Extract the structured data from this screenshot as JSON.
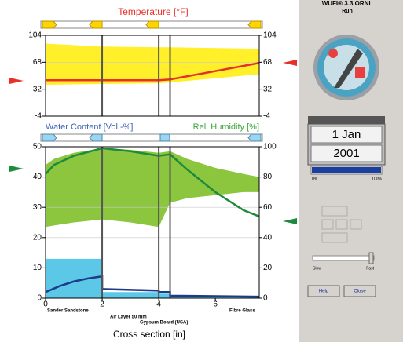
{
  "window": {
    "title": "WUFI® 3.3 ORNL",
    "status": "Run",
    "date": "1 Jan",
    "year": "2001",
    "progress": {
      "value": 100,
      "min_label": "0%",
      "max_label": "100%"
    },
    "speed": {
      "min_label": "Slow",
      "max_label": "Fast"
    },
    "buttons": [
      "Help",
      "Close"
    ]
  },
  "chart_data": [
    {
      "type": "line",
      "title": "Temperature [°F]",
      "xlim": [
        0,
        7.55
      ],
      "ylim": [
        -4,
        104
      ],
      "yticks": [
        -4,
        32,
        68,
        104
      ],
      "grid": true,
      "layer_boundaries": [
        2,
        4,
        4.4
      ],
      "bands": [
        {
          "color": "#fff02a",
          "x": [
            0,
            2,
            4,
            4.4,
            7.55
          ],
          "lower": [
            38,
            39,
            40,
            41,
            52
          ],
          "upper": [
            93,
            89,
            88,
            88,
            86
          ]
        }
      ],
      "series": [
        {
          "color": "#e8302a",
          "x": [
            0,
            2,
            4,
            4.4,
            7.55
          ],
          "values": [
            44,
            44,
            44,
            45,
            67
          ]
        }
      ]
    },
    {
      "type": "line",
      "y_label": "Water Content [Vol.-%]",
      "y2_label": "Rel. Humidity [%]",
      "xlabel": "Cross section [in]",
      "xlim": [
        0,
        7.55
      ],
      "xticks": [
        0,
        2,
        4,
        6
      ],
      "ylim": [
        0,
        50
      ],
      "yticks": [
        0,
        10,
        20,
        30,
        40,
        50
      ],
      "y2lim": [
        0,
        100
      ],
      "y2ticks": [
        0,
        20,
        40,
        60,
        80,
        100
      ],
      "grid": true,
      "layer_boundaries": [
        2,
        4,
        4.4
      ],
      "layer_labels": [
        "Sander Sandstone",
        "Air Layer 50 mm",
        "Gypsum Board (USA)",
        "Fibre Glass"
      ],
      "bands": [
        {
          "color": "#8cc63f",
          "axis": "y2",
          "x": [
            0,
            0.3,
            1,
            2,
            3,
            4,
            4.4,
            5,
            6,
            7,
            7.55
          ],
          "lower": [
            47,
            48,
            50,
            52,
            50,
            47,
            63,
            66,
            68,
            70,
            70
          ],
          "upper": [
            88,
            92,
            96,
            99,
            98,
            96,
            97,
            92,
            86,
            82,
            80
          ]
        },
        {
          "color": "#5bc8e8",
          "x": [
            0,
            2,
            2,
            4,
            4,
            4.4,
            4.4,
            7.55
          ],
          "lower": [
            0,
            0,
            0,
            0,
            0,
            0,
            0,
            0
          ],
          "upper": [
            13,
            13,
            2,
            2,
            1.5,
            1.5,
            0.5,
            0.5
          ]
        }
      ],
      "series": [
        {
          "color": "#1e8a3c",
          "axis": "y2",
          "x": [
            0,
            0.3,
            1,
            2,
            3,
            4,
            4.4,
            5,
            6,
            7,
            7.55
          ],
          "values": [
            82,
            88,
            94,
            99,
            97,
            94,
            95,
            85,
            70,
            58,
            54
          ]
        },
        {
          "color": "#1f3a8a",
          "x": [
            0,
            0.5,
            1,
            1.5,
            2,
            2,
            4,
            4,
            4.4,
            4.4,
            7.55
          ],
          "values": [
            2,
            4,
            5.5,
            6.5,
            7.2,
            3,
            2.5,
            2,
            2,
            0.8,
            0.5
          ]
        }
      ]
    }
  ]
}
